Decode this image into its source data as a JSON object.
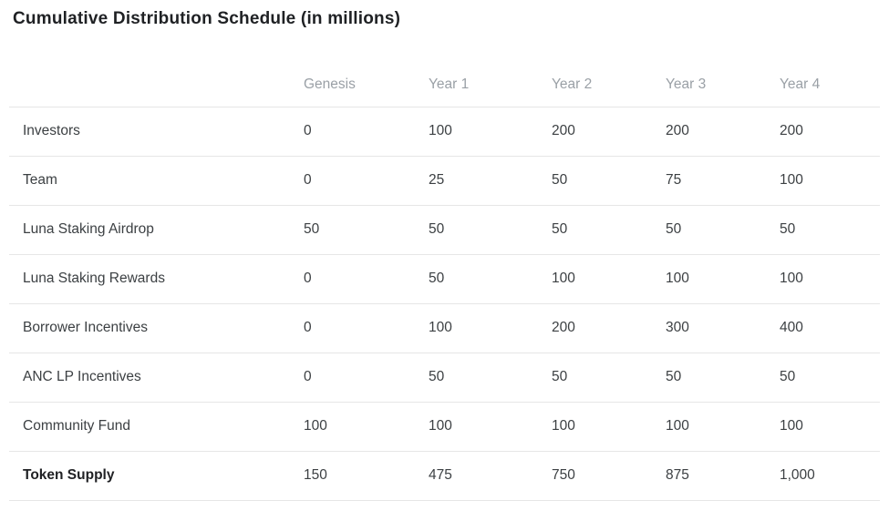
{
  "title": "Cumulative Distribution Schedule (in millions)",
  "table": {
    "columns": [
      "",
      "Genesis",
      "Year 1",
      "Year 2",
      "Year 3",
      "Year 4"
    ],
    "rows": [
      {
        "label": "Investors",
        "values": [
          "0",
          "100",
          "200",
          "200",
          "200"
        ]
      },
      {
        "label": "Team",
        "values": [
          "0",
          "25",
          "50",
          "75",
          "100"
        ]
      },
      {
        "label": "Luna Staking Airdrop",
        "values": [
          "50",
          "50",
          "50",
          "50",
          "50"
        ]
      },
      {
        "label": "Luna Staking Rewards",
        "values": [
          "0",
          "50",
          "100",
          "100",
          "100"
        ]
      },
      {
        "label": "Borrower Incentives",
        "values": [
          "0",
          "100",
          "200",
          "300",
          "400"
        ]
      },
      {
        "label": "ANC LP Incentives",
        "values": [
          "0",
          "50",
          "50",
          "50",
          "50"
        ]
      },
      {
        "label": "Community Fund",
        "values": [
          "100",
          "100",
          "100",
          "100",
          "100"
        ]
      },
      {
        "label": "Token Supply",
        "values": [
          "150",
          "475",
          "750",
          "875",
          "1,000"
        ]
      }
    ]
  },
  "chart_data": {
    "type": "table",
    "title": "Cumulative Distribution Schedule (in millions)",
    "categories": [
      "Genesis",
      "Year 1",
      "Year 2",
      "Year 3",
      "Year 4"
    ],
    "series": [
      {
        "name": "Investors",
        "values": [
          0,
          100,
          200,
          200,
          200
        ]
      },
      {
        "name": "Team",
        "values": [
          0,
          25,
          50,
          75,
          100
        ]
      },
      {
        "name": "Luna Staking Airdrop",
        "values": [
          50,
          50,
          50,
          50,
          50
        ]
      },
      {
        "name": "Luna Staking Rewards",
        "values": [
          0,
          50,
          100,
          100,
          100
        ]
      },
      {
        "name": "Borrower Incentives",
        "values": [
          0,
          100,
          200,
          300,
          400
        ]
      },
      {
        "name": "ANC LP Incentives",
        "values": [
          0,
          50,
          50,
          50,
          50
        ]
      },
      {
        "name": "Community Fund",
        "values": [
          100,
          100,
          100,
          100,
          100
        ]
      },
      {
        "name": "Token Supply",
        "values": [
          150,
          475,
          750,
          875,
          1000
        ]
      }
    ],
    "layout_hints": {
      "grid": "horizontal-row-dividers",
      "total_row": "Token Supply"
    }
  },
  "colors": {
    "title_text": "#1f2124",
    "header_text": "#9aa0a6",
    "cell_text": "#3c4043",
    "total_label_text": "#202124",
    "row_divider": "#e6e6e6",
    "background": "#ffffff"
  }
}
